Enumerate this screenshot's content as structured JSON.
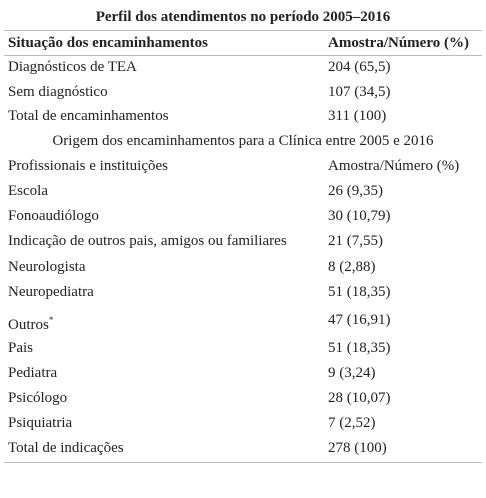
{
  "title": "Perfil dos atendimentos no período 2005–2016",
  "section1": {
    "header": [
      "Situação dos encaminhamentos",
      "Amostra/Número (%)"
    ],
    "rows": [
      {
        "label": "Diagnósticos de TEA",
        "value": "204 (65,5)"
      },
      {
        "label": "Sem diagnóstico",
        "value": "107 (34,5)"
      },
      {
        "label": "Total de encaminhamentos",
        "value": "311 (100)"
      }
    ]
  },
  "section2": {
    "title": "Origem dos encaminhamentos para a Clínica entre 2005 e 2016",
    "header": [
      "Profissionais e instituições",
      "Amostra/Número (%)"
    ],
    "rows": [
      {
        "label": "Escola",
        "value": "26 (9,35)"
      },
      {
        "label": "Fonoaudiólogo",
        "value": "30 (10,79)"
      },
      {
        "label": "Indicação de outros pais, amigos ou familiares",
        "value": "21 (7,55)"
      },
      {
        "label": "Neurologista",
        "value": "8 (2,88)"
      },
      {
        "label": "Neuropediatra",
        "value": "51 (18,35)"
      },
      {
        "label": "Outros",
        "note": "*",
        "value": "47 (16,91)"
      },
      {
        "label": "Pais",
        "value": "51 (18,35)"
      },
      {
        "label": "Pediatra",
        "value": "9 (3,24)"
      },
      {
        "label": "Psicólogo",
        "value": "28 (10,07)"
      },
      {
        "label": "Psiquiatria",
        "value": "7 (2,52)"
      },
      {
        "label": "Total de indicações",
        "value": "278 (100)"
      }
    ]
  }
}
